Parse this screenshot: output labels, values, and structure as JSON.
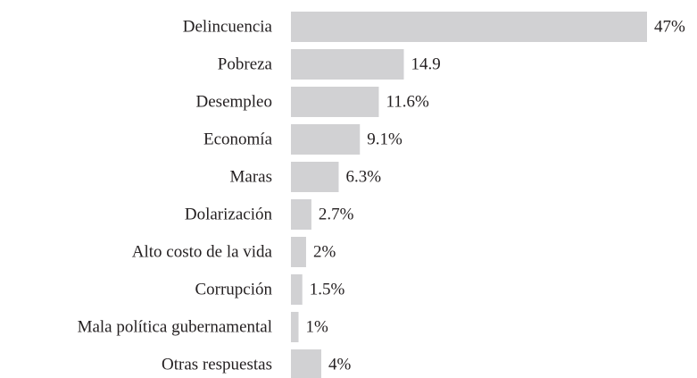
{
  "chart_data": {
    "type": "bar",
    "orientation": "horizontal",
    "categories": [
      "Delincuencia",
      "Pobreza",
      "Desempleo",
      "Economía",
      "Maras",
      "Dolarización",
      "Alto costo de la vida",
      "Corrupción",
      "Mala política gubernamental",
      "Otras respuestas"
    ],
    "values": [
      47,
      14.9,
      11.6,
      9.1,
      6.3,
      2.7,
      2,
      1.5,
      1,
      4
    ],
    "value_labels": [
      "47%",
      "14.9",
      "11.6%",
      "9.1%",
      "6.3%",
      "2.7%",
      "2%",
      "1.5%",
      "1%",
      "4%"
    ],
    "color": "#d1d1d3"
  }
}
